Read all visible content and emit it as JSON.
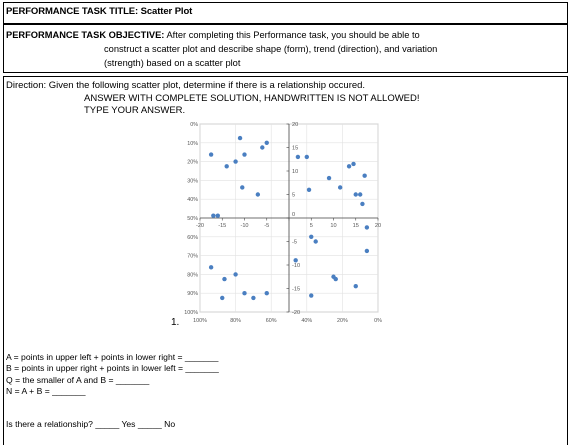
{
  "header": {
    "title": "PERFORMANCE TASK TITLE: Scatter Plot"
  },
  "objective": {
    "label": "PERFORMANCE TASK OBJECTIVE:",
    "line1": "After completing this Performance task, you should be able to",
    "line2": "construct a scatter plot and describe shape (form), trend (direction), and variation",
    "line3": "(strength) based on a scatter plot"
  },
  "direction": {
    "line1": "Direction: Given the following scatter plot, determine if there is a relationship occured.",
    "line2": "ANSWER WITH COMPLETE SOLUTION, HANDWRITTEN IS NOT ALLOWED!",
    "line3": "TYPE YOUR ANSWER."
  },
  "item_number": "1.",
  "questions": [
    "A = points in upper left + points in lower right = _______",
    "B = points in upper right + points in lower left = _______",
    "Q = the smaller of A and B = _______",
    "N = A + B = _______"
  ],
  "relationship": {
    "prompt": "Is there a relationship? _____ Yes _____ No"
  },
  "chart_data": {
    "type": "scatter",
    "x_ticks": [
      "-20",
      "-15",
      "-10",
      "-5",
      "0",
      "5",
      "10",
      "15",
      "20"
    ],
    "y_ticks": [
      "20",
      "15",
      "10",
      "5",
      "0",
      "-5",
      "-10",
      "-15",
      "-20"
    ],
    "left_percent_ticks": [
      "0%",
      "10%",
      "20%",
      "30%",
      "40%",
      "50%",
      "60%",
      "70%",
      "80%",
      "90%",
      "100%"
    ],
    "bottom_percent_ticks": [
      "100%",
      "80%",
      "60%",
      "40%",
      "20%",
      "0%"
    ],
    "xlim": [
      -20,
      20
    ],
    "ylim": [
      -20,
      20
    ],
    "grid": true,
    "point_color": "#4a7fc1",
    "points": [
      {
        "x": -17.5,
        "y": 13.5
      },
      {
        "x": -14,
        "y": 11
      },
      {
        "x": -12,
        "y": 12
      },
      {
        "x": -11,
        "y": 17
      },
      {
        "x": -10,
        "y": 13.5
      },
      {
        "x": -6,
        "y": 15
      },
      {
        "x": -5,
        "y": 16
      },
      {
        "x": -10.5,
        "y": 6.5
      },
      {
        "x": -7,
        "y": 5
      },
      {
        "x": -17,
        "y": 0.5
      },
      {
        "x": -16,
        "y": 0.5
      },
      {
        "x": 2,
        "y": 13
      },
      {
        "x": 4,
        "y": 13
      },
      {
        "x": 4.5,
        "y": 6
      },
      {
        "x": 9,
        "y": 8.5
      },
      {
        "x": 11.5,
        "y": 6.5
      },
      {
        "x": 13.5,
        "y": 11
      },
      {
        "x": 14.5,
        "y": 11.5
      },
      {
        "x": 15,
        "y": 5
      },
      {
        "x": 16,
        "y": 5
      },
      {
        "x": 16.5,
        "y": 3
      },
      {
        "x": 17,
        "y": 9
      },
      {
        "x": 17.5,
        "y": -2
      },
      {
        "x": -17.5,
        "y": -10.5
      },
      {
        "x": -14.5,
        "y": -13
      },
      {
        "x": -12,
        "y": -12
      },
      {
        "x": -15,
        "y": -17
      },
      {
        "x": -10,
        "y": -16
      },
      {
        "x": -8,
        "y": -17
      },
      {
        "x": -5,
        "y": -16
      },
      {
        "x": 5,
        "y": -4
      },
      {
        "x": 6,
        "y": -5
      },
      {
        "x": 1.5,
        "y": -9
      },
      {
        "x": 10,
        "y": -12.5
      },
      {
        "x": 10.5,
        "y": -13
      },
      {
        "x": 5,
        "y": -16.5
      },
      {
        "x": 15,
        "y": -14.5
      },
      {
        "x": 17.5,
        "y": -7
      }
    ]
  }
}
